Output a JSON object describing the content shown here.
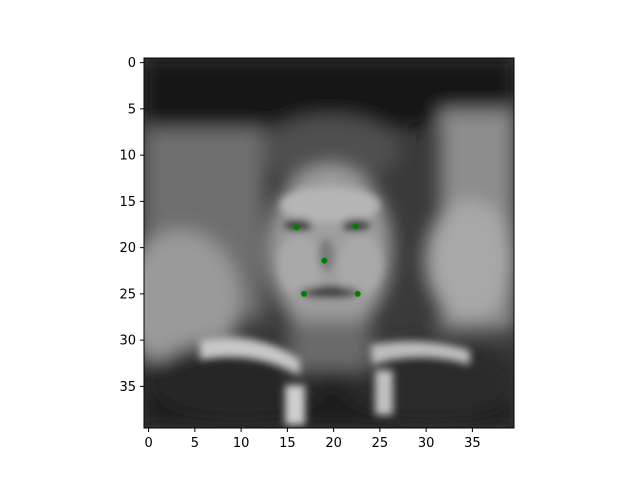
{
  "chart_data": {
    "type": "image_with_scatter_overlay",
    "title": "",
    "xlabel": "",
    "ylabel": "",
    "image_shape": [
      40,
      40
    ],
    "colormap": "gray",
    "xlim": [
      -0.5,
      39.5
    ],
    "ylim": [
      39.5,
      -0.5
    ],
    "x_ticks": [
      0,
      5,
      10,
      15,
      20,
      25,
      30,
      35
    ],
    "y_ticks": [
      0,
      5,
      10,
      15,
      20,
      25,
      30,
      35
    ],
    "grid": false,
    "legend": "none",
    "keypoints": {
      "color": "#008000",
      "points": [
        {
          "name": "left-eye",
          "x": 16.0,
          "y": 17.8
        },
        {
          "name": "right-eye",
          "x": 22.4,
          "y": 17.7
        },
        {
          "name": "nose-tip",
          "x": 19.0,
          "y": 21.4
        },
        {
          "name": "mouth-left",
          "x": 16.8,
          "y": 25.0
        },
        {
          "name": "mouth-right",
          "x": 22.6,
          "y": 25.0
        }
      ]
    }
  }
}
